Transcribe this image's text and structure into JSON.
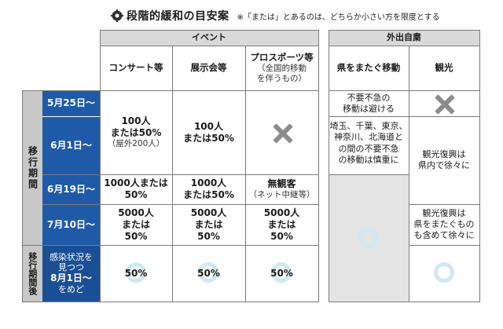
{
  "title": {
    "main": "段階的緩和の目安案",
    "note": "※「または」とあるのは、どちらか小さい方を限度とする"
  },
  "headers": {
    "event": "イベント",
    "going_out": "外出自粛",
    "concert": "コンサート等",
    "exhibition": "展示会等",
    "pro_sports_line1": "プロスポーツ等",
    "pro_sports_line2": "（全国的移動",
    "pro_sports_line3": "を伴うもの）",
    "cross_prefecture": "県をまたぐ移動",
    "tourism": "観光"
  },
  "side": {
    "transition": "移行期間",
    "after": "移行期間後"
  },
  "dates": {
    "may25": "5月25日〜",
    "jun1": "6月1日〜",
    "jun19": "6月19日〜",
    "jul10": "7月10日〜",
    "aug_line1": "感染状況を",
    "aug_line2": "見つつ",
    "aug_line3": "8月1日〜",
    "aug_line4": "をめど"
  },
  "rows": {
    "concert_early_1": "100人",
    "concert_early_2": "または50%",
    "concert_early_3": "（屋外200人）",
    "exhibit_early_1": "100人",
    "exhibit_early_2": "または50%",
    "concert_jun19_1": "1000人または",
    "concert_jun19_2": "50%",
    "exhibit_jun19_1": "1000人",
    "exhibit_jun19_2": "または50%",
    "sports_jun19_1": "無観客",
    "sports_jun19_2": "（ネット中継等）",
    "concert_jul10_1": "5000人",
    "concert_jul10_2": "または",
    "concert_jul10_3": "50%",
    "exhibit_jul10_1": "5000人",
    "exhibit_jul10_2": "または",
    "exhibit_jul10_3": "50%",
    "sports_jul10_1": "5000人",
    "sports_jul10_2": "または",
    "sports_jul10_3": "50%",
    "after_concert": "50%",
    "after_exhibit": "50%",
    "after_sports": "50%",
    "cross_may25_1": "不要不急の",
    "cross_may25_2": "移動は避ける",
    "cross_jun1_1": "埼玉、千葉、東京、",
    "cross_jun1_2": "神奈川、北海道と",
    "cross_jun1_3": "の間の不要不急",
    "cross_jun1_4": "の移動は慎重に",
    "tour_jun_1": "観光復興は",
    "tour_jun_2": "県内で徐々に",
    "tour_jul_1": "観光復興は",
    "tour_jul_2": "県をまたぐもの",
    "tour_jul_3": "も含めて徐々に"
  },
  "icons": {
    "title": "gear-icon",
    "not_allowed": "x-mark-icon",
    "allowed": "circle-icon"
  },
  "colors": {
    "blue": "#1e5aa8",
    "header_gray": "#d9d9d9",
    "x_gray": "#8c8c8c",
    "circle": "#cfe9f0"
  }
}
